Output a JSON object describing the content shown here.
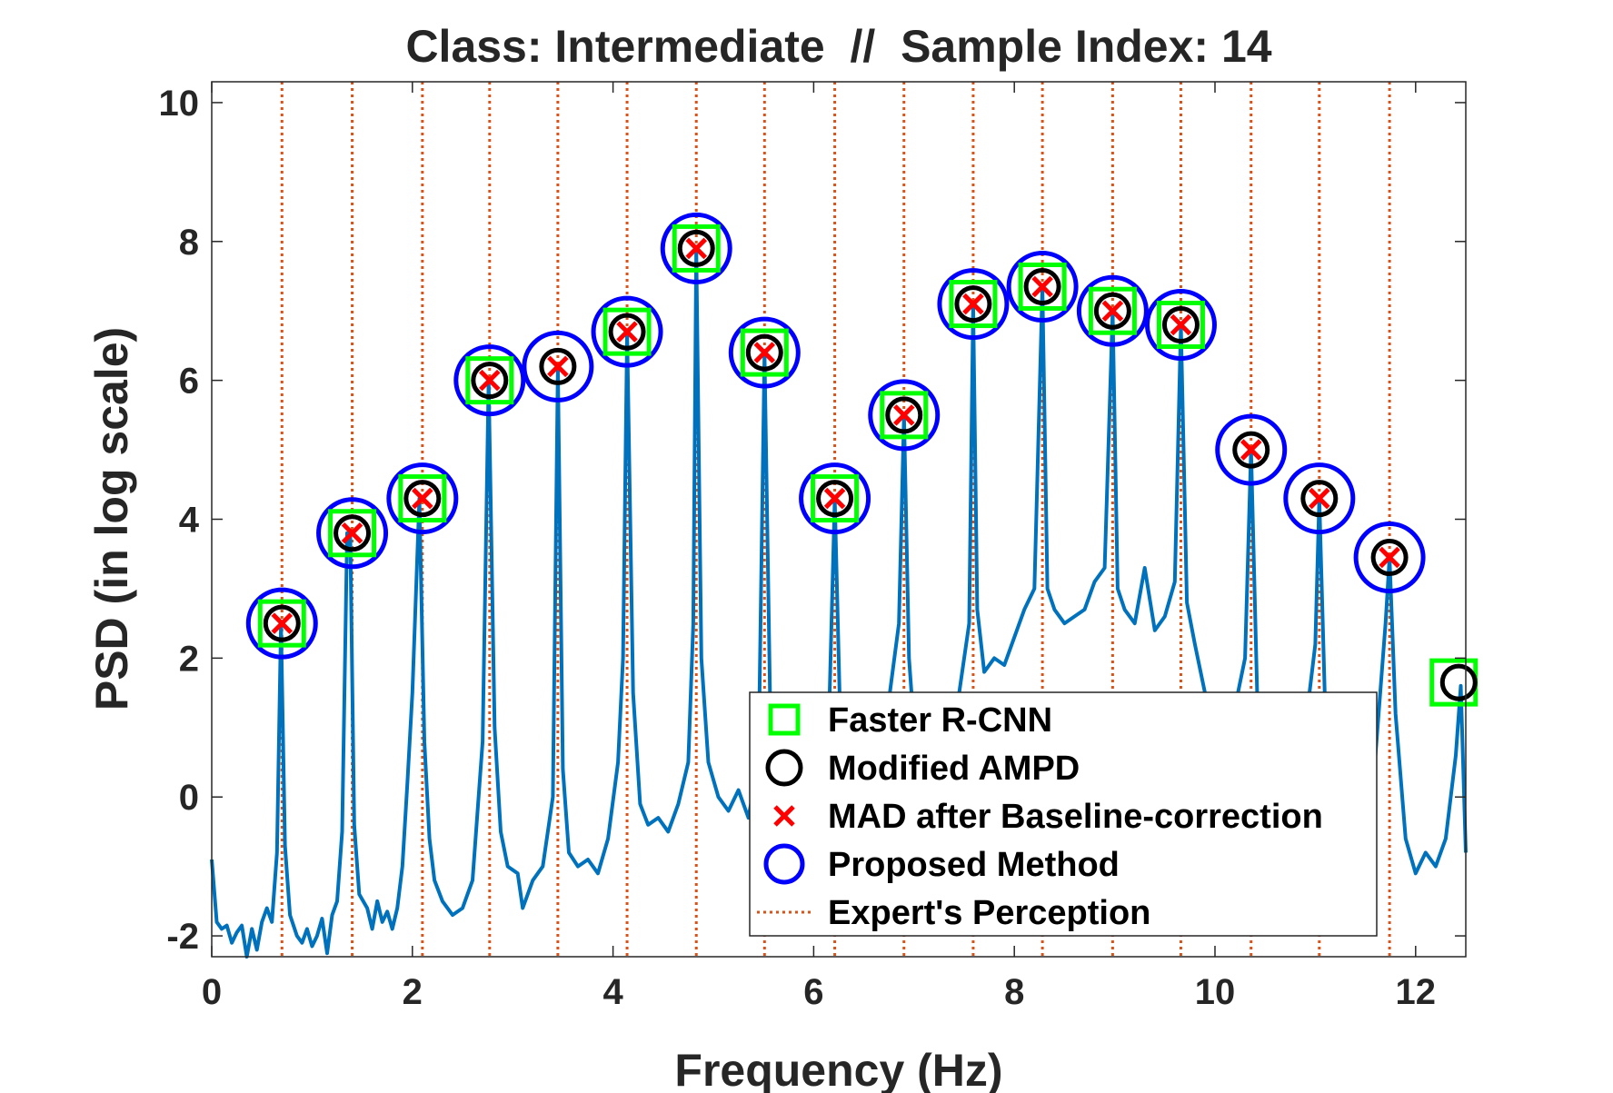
{
  "chart_data": {
    "type": "line",
    "title": "Class: Intermediate  //  Sample Index: 14",
    "xlabel": "Frequency (Hz)",
    "ylabel": "PSD (in log scale)",
    "xlim": [
      0,
      12.5
    ],
    "ylim": [
      -2.3,
      10.3
    ],
    "xticks": [
      0,
      2,
      4,
      6,
      8,
      10,
      12
    ],
    "yticks": [
      -2,
      0,
      2,
      4,
      6,
      8,
      10
    ],
    "xtick_labels": [
      "0",
      "2",
      "4",
      "6",
      "8",
      "10",
      "12"
    ],
    "ytick_labels": [
      "-2",
      "0",
      "2",
      "4",
      "6",
      "8",
      "10"
    ],
    "grid": false,
    "legend_placement": "bottom-right",
    "colors": {
      "psd_line": "#0072BD",
      "expert_lines": "#D95319",
      "faster_rcnn": "#00FF00",
      "modified_ampd": "#000000",
      "mad": "#FF0000",
      "proposed": "#0000FF"
    },
    "series": [
      {
        "name": "PSD",
        "x": [
          0.0,
          0.05,
          0.1,
          0.15,
          0.2,
          0.25,
          0.3,
          0.35,
          0.4,
          0.45,
          0.5,
          0.55,
          0.6,
          0.65,
          0.69,
          0.73,
          0.78,
          0.85,
          0.9,
          0.95,
          1.0,
          1.05,
          1.1,
          1.15,
          1.2,
          1.25,
          1.3,
          1.35,
          1.38,
          1.42,
          1.47,
          1.55,
          1.6,
          1.65,
          1.7,
          1.75,
          1.8,
          1.85,
          1.9,
          1.95,
          2.0,
          2.07,
          2.12,
          2.17,
          2.22,
          2.3,
          2.4,
          2.5,
          2.6,
          2.7,
          2.76,
          2.82,
          2.88,
          2.95,
          3.05,
          3.1,
          3.2,
          3.3,
          3.4,
          3.45,
          3.5,
          3.56,
          3.65,
          3.75,
          3.85,
          3.95,
          4.05,
          4.1,
          4.14,
          4.2,
          4.27,
          4.35,
          4.45,
          4.55,
          4.65,
          4.75,
          4.8,
          4.83,
          4.88,
          4.95,
          5.05,
          5.15,
          5.25,
          5.35,
          5.45,
          5.51,
          5.57,
          5.65,
          5.75,
          5.85,
          5.95,
          6.05,
          6.15,
          6.21,
          6.27,
          6.35,
          6.45,
          6.55,
          6.65,
          6.75,
          6.85,
          6.9,
          6.95,
          7.0,
          7.05,
          7.15,
          7.25,
          7.35,
          7.45,
          7.55,
          7.59,
          7.63,
          7.7,
          7.8,
          7.9,
          8.0,
          8.1,
          8.2,
          8.28,
          8.33,
          8.4,
          8.5,
          8.6,
          8.7,
          8.8,
          8.9,
          8.98,
          9.03,
          9.1,
          9.2,
          9.3,
          9.4,
          9.5,
          9.6,
          9.66,
          9.72,
          9.8,
          9.9,
          10.0,
          10.1,
          10.2,
          10.3,
          10.36,
          10.42,
          10.5,
          10.6,
          10.7,
          10.8,
          10.9,
          11.0,
          11.04,
          11.1,
          11.2,
          11.3,
          11.4,
          11.5,
          11.6,
          11.7,
          11.74,
          11.8,
          11.9,
          12.0,
          12.1,
          12.2,
          12.3,
          12.4,
          12.45,
          12.5
        ],
        "y": [
          -0.9,
          -1.8,
          -1.9,
          -1.85,
          -2.1,
          -1.95,
          -1.85,
          -2.3,
          -1.9,
          -2.2,
          -1.8,
          -1.6,
          -1.8,
          -0.8,
          2.5,
          -0.7,
          -1.7,
          -2.0,
          -2.1,
          -1.9,
          -2.15,
          -2.0,
          -1.75,
          -2.25,
          -1.7,
          -1.5,
          -0.5,
          3.8,
          3.8,
          -0.4,
          -1.4,
          -1.6,
          -1.9,
          -1.5,
          -1.8,
          -1.65,
          -1.9,
          -1.6,
          -1.0,
          0.2,
          1.5,
          4.3,
          0.8,
          -0.6,
          -1.2,
          -1.5,
          -1.7,
          -1.6,
          -1.2,
          0.8,
          6.0,
          1.0,
          -0.5,
          -1.0,
          -1.1,
          -1.6,
          -1.2,
          -1.0,
          0.0,
          6.2,
          0.4,
          -0.8,
          -1.0,
          -0.9,
          -1.1,
          -0.6,
          0.5,
          2.0,
          6.7,
          1.5,
          -0.1,
          -0.4,
          -0.3,
          -0.5,
          -0.1,
          0.5,
          2.5,
          7.9,
          2.0,
          0.5,
          0.0,
          -0.2,
          0.1,
          -0.3,
          0.5,
          6.4,
          1.0,
          0.0,
          -0.3,
          0.2,
          -0.1,
          0.3,
          1.0,
          4.3,
          0.8,
          0.2,
          0.4,
          0.8,
          1.0,
          1.4,
          2.5,
          5.5,
          2.0,
          1.0,
          0.8,
          0.5,
          0.8,
          1.2,
          1.5,
          2.5,
          7.1,
          2.7,
          1.8,
          2.0,
          1.9,
          2.3,
          2.7,
          3.0,
          7.35,
          3.0,
          2.7,
          2.5,
          2.6,
          2.7,
          3.1,
          3.3,
          7.0,
          3.0,
          2.7,
          2.5,
          3.3,
          2.4,
          2.6,
          3.1,
          6.8,
          2.8,
          2.2,
          1.5,
          1.3,
          1.0,
          1.3,
          2.0,
          5.0,
          1.5,
          0.5,
          0.8,
          1.0,
          0.7,
          1.0,
          2.2,
          4.3,
          1.2,
          0.5,
          -0.6,
          0.3,
          -0.2,
          0.6,
          2.5,
          3.45,
          1.2,
          -0.6,
          -1.1,
          -0.8,
          -1.0,
          -0.6,
          0.6,
          1.6,
          -0.8
        ]
      }
    ],
    "markers": {
      "faster_rcnn": {
        "x": [
          0.7,
          1.4,
          2.1,
          2.77,
          4.14,
          4.83,
          5.51,
          6.21,
          6.9,
          7.59,
          8.28,
          8.98,
          9.66,
          12.38
        ],
        "y": [
          2.5,
          3.8,
          4.3,
          6.0,
          6.7,
          7.9,
          6.4,
          4.3,
          5.5,
          7.1,
          7.35,
          7.0,
          6.8,
          1.65
        ]
      },
      "modified_ampd": {
        "x": [
          0.7,
          1.4,
          2.1,
          2.77,
          3.45,
          4.14,
          4.83,
          5.51,
          6.21,
          6.9,
          7.59,
          8.28,
          8.98,
          9.66,
          10.36,
          11.04,
          11.74,
          12.43
        ],
        "y": [
          2.5,
          3.8,
          4.3,
          6.0,
          6.2,
          6.7,
          7.9,
          6.4,
          4.3,
          5.5,
          7.1,
          7.35,
          7.0,
          6.8,
          5.0,
          4.3,
          3.45,
          1.65
        ]
      },
      "mad": {
        "x": [
          0.7,
          1.4,
          2.1,
          2.77,
          3.45,
          4.14,
          4.83,
          5.51,
          6.21,
          6.9,
          7.59,
          8.28,
          8.98,
          9.66,
          10.36,
          11.04,
          11.74
        ],
        "y": [
          2.5,
          3.8,
          4.3,
          6.0,
          6.2,
          6.7,
          7.9,
          6.4,
          4.3,
          5.5,
          7.1,
          7.35,
          7.0,
          6.8,
          5.0,
          4.3,
          3.45
        ]
      },
      "proposed": {
        "x": [
          0.7,
          1.4,
          2.1,
          2.77,
          3.45,
          4.14,
          4.83,
          5.51,
          6.21,
          6.9,
          7.59,
          8.28,
          8.98,
          9.66,
          10.36,
          11.04,
          11.74
        ],
        "y": [
          2.5,
          3.8,
          4.3,
          6.0,
          6.2,
          6.7,
          7.9,
          6.4,
          4.3,
          5.5,
          7.1,
          7.35,
          7.0,
          6.8,
          5.0,
          4.3,
          3.45
        ]
      },
      "expert": {
        "x": [
          0.7,
          1.4,
          2.1,
          2.77,
          3.45,
          4.14,
          4.83,
          5.51,
          6.21,
          6.9,
          7.59,
          8.28,
          8.98,
          9.66,
          10.36,
          11.04,
          11.74
        ]
      }
    },
    "legend": [
      {
        "key": "faster_rcnn",
        "label": "Faster R-CNN"
      },
      {
        "key": "modified_ampd",
        "label": "Modified AMPD"
      },
      {
        "key": "mad",
        "label": "MAD after Baseline-correction"
      },
      {
        "key": "proposed",
        "label": "Proposed Method"
      },
      {
        "key": "expert",
        "label": "Expert's Perception"
      }
    ]
  }
}
